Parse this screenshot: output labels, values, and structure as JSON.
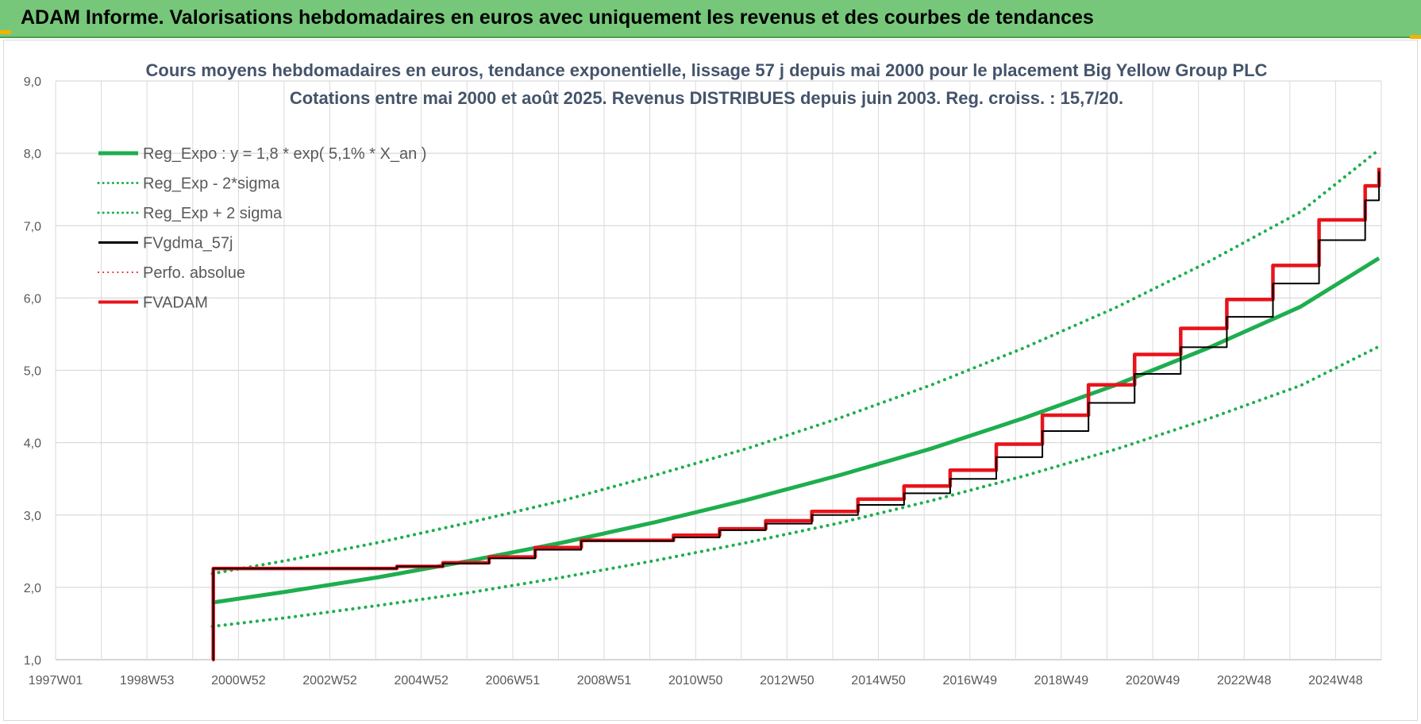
{
  "banner": {
    "title": "ADAM Informe. Valorisations hebdomadaires en euros avec uniquement les revenus et des courbes de tendances"
  },
  "colors": {
    "banner_bg": "#77c77a",
    "reg_expo": "#1fae4f",
    "fvgdma": "#000000",
    "fvadam": "#e8131b",
    "perfo": "#e8131b",
    "grid": "#dadada",
    "accent_corner": "#f0b400"
  },
  "chart_data": {
    "type": "line",
    "title": "Cours moyens hebdomadaires en euros, tendance exponentielle, lissage 57 j depuis mai 2000 pour le placement Big Yellow Group PLC",
    "subtitle": "Cotations entre mai 2000 et août 2025. Revenus DISTRIBUES depuis juin 2003. Reg. croiss. : 15,7/20.",
    "xlabel": "",
    "ylabel": "",
    "ylim": [
      1.0,
      9.0
    ],
    "xlim": [
      1997.0,
      2025.75
    ],
    "y_ticks": [
      "1,0",
      "2,0",
      "3,0",
      "4,0",
      "5,0",
      "6,0",
      "7,0",
      "8,0",
      "9,0"
    ],
    "x_ticks": [
      "1997W01",
      "1998W53",
      "2000W52",
      "2002W52",
      "2004W52",
      "2006W51",
      "2008W51",
      "2010W50",
      "2012W50",
      "2014W50",
      "2016W49",
      "2018W49",
      "2020W49",
      "2022W48",
      "2024W48"
    ],
    "grid": true,
    "legend_position": "top-left",
    "legend": [
      {
        "label": "Reg_Expo : y = 1,8 * exp( 5,1% *  X_an )",
        "style": "solid",
        "color": "#1fae4f",
        "width": 5
      },
      {
        "label": "Reg_Exp - 2*sigma",
        "style": "dotted",
        "color": "#1fae4f",
        "width": 3
      },
      {
        "label": "Reg_Exp + 2 sigma",
        "style": "dotted",
        "color": "#1fae4f",
        "width": 3
      },
      {
        "label": "FVgdma_57j",
        "style": "solid",
        "color": "#000000",
        "width": 3
      },
      {
        "label": "Perfo. absolue",
        "style": "dotted",
        "color": "#e8131b",
        "width": 2
      },
      {
        "label": "FVADAM",
        "style": "solid",
        "color": "#e8131b",
        "width": 4
      }
    ],
    "series": [
      {
        "name": "Reg_Expo : y = 1,8 * exp( 5,1% *  X_an )",
        "x": [
          2000.4,
          2002.0,
          2004.0,
          2006.0,
          2008.0,
          2010.0,
          2012.0,
          2014.0,
          2016.0,
          2018.0,
          2020.0,
          2022.0,
          2024.0,
          2025.7
        ],
        "values": [
          1.79,
          1.94,
          2.14,
          2.37,
          2.62,
          2.9,
          3.21,
          3.55,
          3.92,
          4.34,
          4.8,
          5.31,
          5.88,
          6.55
        ]
      },
      {
        "name": "Reg_Exp - 2*sigma",
        "x": [
          2000.4,
          2002.0,
          2004.0,
          2006.0,
          2008.0,
          2010.0,
          2012.0,
          2014.0,
          2016.0,
          2018.0,
          2020.0,
          2022.0,
          2024.0,
          2025.7
        ],
        "values": [
          1.46,
          1.58,
          1.75,
          1.93,
          2.14,
          2.37,
          2.62,
          2.89,
          3.2,
          3.54,
          3.91,
          4.33,
          4.79,
          5.33
        ]
      },
      {
        "name": "Reg_Exp + 2 sigma",
        "x": [
          2000.4,
          2002.0,
          2004.0,
          2006.0,
          2008.0,
          2010.0,
          2012.0,
          2014.0,
          2016.0,
          2018.0,
          2020.0,
          2022.0,
          2024.0,
          2025.7
        ],
        "values": [
          2.19,
          2.37,
          2.62,
          2.9,
          3.2,
          3.55,
          3.92,
          4.34,
          4.8,
          5.31,
          5.87,
          6.5,
          7.19,
          8.05
        ]
      },
      {
        "name": "FVgdma_57j",
        "x": [
          2000.4,
          2000.42,
          2003.4,
          2004.4,
          2005.4,
          2006.4,
          2007.4,
          2008.4,
          2009.4,
          2010.4,
          2011.4,
          2012.4,
          2013.4,
          2014.4,
          2015.4,
          2016.4,
          2017.4,
          2018.4,
          2019.4,
          2020.4,
          2021.4,
          2022.4,
          2023.4,
          2024.4,
          2025.4,
          2025.7
        ],
        "values": [
          1.0,
          2.26,
          2.26,
          2.29,
          2.33,
          2.4,
          2.52,
          2.64,
          2.64,
          2.69,
          2.79,
          2.88,
          3.0,
          3.14,
          3.3,
          3.5,
          3.8,
          4.16,
          4.55,
          4.95,
          5.32,
          5.74,
          6.2,
          6.8,
          7.35,
          7.75
        ]
      },
      {
        "name": "FVADAM",
        "x": [
          2000.4,
          2000.42,
          2003.4,
          2004.4,
          2005.4,
          2006.4,
          2007.4,
          2008.4,
          2009.4,
          2010.4,
          2011.4,
          2012.4,
          2013.4,
          2014.4,
          2015.4,
          2016.4,
          2017.4,
          2018.4,
          2019.4,
          2020.4,
          2021.4,
          2022.4,
          2023.4,
          2024.4,
          2025.4,
          2025.7
        ],
        "values": [
          1.0,
          2.26,
          2.26,
          2.29,
          2.34,
          2.42,
          2.55,
          2.65,
          2.65,
          2.72,
          2.81,
          2.92,
          3.05,
          3.22,
          3.4,
          3.62,
          3.98,
          4.38,
          4.8,
          5.22,
          5.58,
          5.98,
          6.45,
          7.08,
          7.55,
          7.8
        ]
      }
    ]
  }
}
